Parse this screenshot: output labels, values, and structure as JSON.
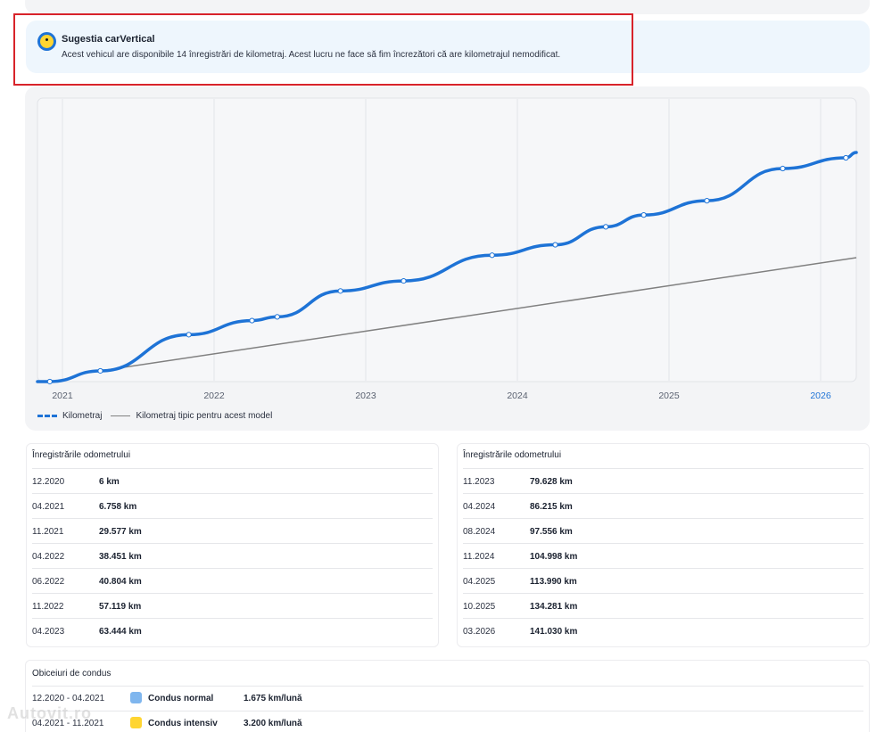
{
  "suggestion": {
    "title": "Sugestia carVertical",
    "text": "Acest vehicul are disponibile 14 înregistrări de kilometraj. Acest lucru ne face să fim încrezători că are kilometrajul nemodificat."
  },
  "chart_data": {
    "type": "line",
    "x_tick_labels": [
      "2021",
      "2022",
      "2023",
      "2024",
      "2025",
      "2026"
    ],
    "highlighted_tick": "2026",
    "grid": true,
    "legend_position": "bottom-left",
    "series": [
      {
        "name": "Kilometraj",
        "color": "#1e73d6",
        "style": "solid-with-markers",
        "points": [
          {
            "x": "12.2020",
            "y": 6
          },
          {
            "x": "04.2021",
            "y": 6758
          },
          {
            "x": "11.2021",
            "y": 29577
          },
          {
            "x": "04.2022",
            "y": 38451
          },
          {
            "x": "06.2022",
            "y": 40804
          },
          {
            "x": "11.2022",
            "y": 57119
          },
          {
            "x": "04.2023",
            "y": 63444
          },
          {
            "x": "11.2023",
            "y": 79628
          },
          {
            "x": "04.2024",
            "y": 86215
          },
          {
            "x": "08.2024",
            "y": 97556
          },
          {
            "x": "11.2024",
            "y": 104998
          },
          {
            "x": "04.2025",
            "y": 113990
          },
          {
            "x": "10.2025",
            "y": 134281
          },
          {
            "x": "03.2026",
            "y": 141030
          }
        ]
      },
      {
        "name": "Kilometraj tipic pentru acest model",
        "color": "#808080",
        "style": "line",
        "points": [
          {
            "x": "04.2021",
            "y": 6758
          },
          {
            "x": "03.2026",
            "y": 80000
          }
        ]
      }
    ]
  },
  "legend": {
    "actual_label": "Kilometraj",
    "typical_label": "Kilometraj tipic pentru acest model"
  },
  "odometer_left": {
    "heading": "Înregistrările odometrului",
    "rows": [
      {
        "date": "12.2020",
        "km": "6 km"
      },
      {
        "date": "04.2021",
        "km": "6.758 km"
      },
      {
        "date": "11.2021",
        "km": "29.577 km"
      },
      {
        "date": "04.2022",
        "km": "38.451 km"
      },
      {
        "date": "06.2022",
        "km": "40.804 km"
      },
      {
        "date": "11.2022",
        "km": "57.119 km"
      },
      {
        "date": "04.2023",
        "km": "63.444 km"
      }
    ]
  },
  "odometer_right": {
    "heading": "Înregistrările odometrului",
    "rows": [
      {
        "date": "11.2023",
        "km": "79.628 km"
      },
      {
        "date": "04.2024",
        "km": "86.215 km"
      },
      {
        "date": "08.2024",
        "km": "97.556 km"
      },
      {
        "date": "11.2024",
        "km": "104.998 km"
      },
      {
        "date": "04.2025",
        "km": "113.990 km"
      },
      {
        "date": "10.2025",
        "km": "134.281 km"
      },
      {
        "date": "03.2026",
        "km": "141.030 km"
      }
    ]
  },
  "driving_habits": {
    "heading": "Obiceiuri de condus",
    "rows": [
      {
        "period": "12.2020 - 04.2021",
        "type": "Condus normal",
        "rate": "1.675 km/lună",
        "color": "#7fb6ee"
      },
      {
        "period": "04.2021 - 11.2021",
        "type": "Condus intensiv",
        "rate": "3.200 km/lună",
        "color": "#ffd531"
      }
    ]
  },
  "watermark": "Autovit.ro"
}
